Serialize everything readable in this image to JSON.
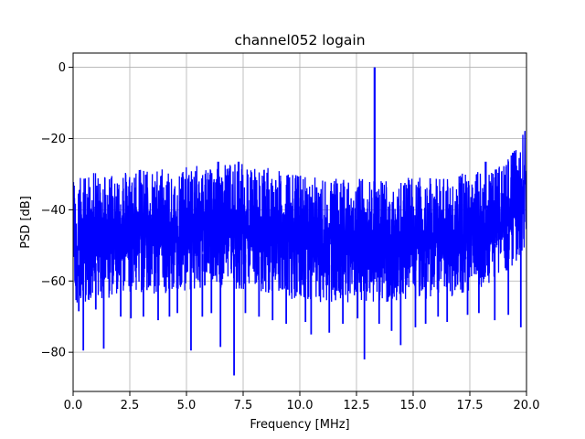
{
  "chart_data": {
    "type": "line",
    "title": "channel052 logain",
    "xlabel": "Frequency [MHz]",
    "ylabel": "PSD [dB]",
    "xlim": [
      0,
      20
    ],
    "ylim": [
      -91,
      4
    ],
    "xticks": [
      0,
      2.5,
      5,
      7.5,
      10,
      12.5,
      15,
      17.5,
      20
    ],
    "xtick_labels": [
      "0.0",
      "2.5",
      "5.0",
      "7.5",
      "10.0",
      "12.5",
      "15.0",
      "17.5",
      "20.0"
    ],
    "yticks": [
      0,
      -20,
      -40,
      -60,
      -80
    ],
    "ytick_labels": [
      "0",
      "−20",
      "−40",
      "−60",
      "−80"
    ],
    "grid": true,
    "series": [
      {
        "color": "#0000ff",
        "envelope": {
          "x": [
            0,
            0.5,
            1,
            1.5,
            2,
            2.5,
            3,
            3.5,
            4,
            4.5,
            5,
            5.5,
            6,
            6.5,
            7,
            7.5,
            8,
            8.5,
            9,
            9.5,
            10,
            10.5,
            11,
            11.5,
            12,
            12.5,
            13,
            13.5,
            14,
            14.5,
            15,
            15.5,
            16,
            16.5,
            17,
            17.5,
            18,
            18.5,
            19,
            19.5,
            20
          ],
          "upper": [
            -31,
            -30,
            -29.5,
            -29,
            -29,
            -28.5,
            -28.5,
            -28.5,
            -28,
            -28,
            -28,
            -27.5,
            -27.5,
            -27,
            -27,
            -27,
            -27.5,
            -28,
            -29,
            -29.5,
            -30,
            -30.5,
            -31,
            -31,
            -31,
            -31,
            -31,
            -31,
            -31,
            -31,
            -31,
            -31,
            -31,
            -30.5,
            -30,
            -29.5,
            -29,
            -28.5,
            -27,
            -23,
            -15
          ],
          "lower": [
            -67,
            -66,
            -65.5,
            -65,
            -64.5,
            -64,
            -64,
            -64,
            -63.5,
            -63,
            -63,
            -62.5,
            -62.5,
            -62.5,
            -62.5,
            -62.5,
            -63,
            -63.5,
            -64,
            -65,
            -65.5,
            -66,
            -66,
            -66,
            -66,
            -66,
            -66,
            -66,
            -66,
            -66,
            -65.5,
            -65,
            -65,
            -64.5,
            -64,
            -63,
            -62,
            -60,
            -58,
            -55,
            -50
          ],
          "core_upper": [
            -42,
            -41,
            -41,
            -40,
            -40,
            -40,
            -39.5,
            -39.5,
            -39,
            -39,
            -39,
            -38.5,
            -38.5,
            -38,
            -38,
            -38,
            -38.5,
            -39,
            -40,
            -40.5,
            -41,
            -41.5,
            -42,
            -42,
            -42,
            -42,
            -42,
            -42,
            -42,
            -42,
            -42,
            -42,
            -42,
            -41.5,
            -41,
            -40.5,
            -40,
            -39.5,
            -38,
            -35,
            -28
          ],
          "core_lower": [
            -56,
            -55,
            -55,
            -54.5,
            -54,
            -54,
            -53.5,
            -53.5,
            -53,
            -53,
            -53,
            -52.5,
            -52.5,
            -52.5,
            -52.5,
            -52.5,
            -53,
            -53.5,
            -54,
            -54.5,
            -55,
            -55.5,
            -55.5,
            -55.5,
            -55.5,
            -55.5,
            -55.5,
            -55.5,
            -55.5,
            -55.5,
            -55,
            -55,
            -55,
            -54.5,
            -54,
            -53,
            -52,
            -50,
            -48,
            -45,
            -40
          ]
        },
        "spikes_down": [
          {
            "x": 0.25,
            "y": -68.5
          },
          {
            "x": 0.45,
            "y": -79.5
          },
          {
            "x": 1.0,
            "y": -68
          },
          {
            "x": 1.35,
            "y": -79
          },
          {
            "x": 2.1,
            "y": -70
          },
          {
            "x": 2.55,
            "y": -70.5
          },
          {
            "x": 3.1,
            "y": -70
          },
          {
            "x": 3.75,
            "y": -71
          },
          {
            "x": 4.25,
            "y": -70
          },
          {
            "x": 4.6,
            "y": -69
          },
          {
            "x": 5.2,
            "y": -79.5
          },
          {
            "x": 5.7,
            "y": -70
          },
          {
            "x": 6.1,
            "y": -69
          },
          {
            "x": 6.5,
            "y": -78.5
          },
          {
            "x": 7.1,
            "y": -86.5
          },
          {
            "x": 7.6,
            "y": -69
          },
          {
            "x": 8.2,
            "y": -70
          },
          {
            "x": 8.8,
            "y": -71
          },
          {
            "x": 9.4,
            "y": -72
          },
          {
            "x": 10.25,
            "y": -71.5
          },
          {
            "x": 10.5,
            "y": -75
          },
          {
            "x": 11.3,
            "y": -74.5
          },
          {
            "x": 11.9,
            "y": -72
          },
          {
            "x": 12.55,
            "y": -70.5
          },
          {
            "x": 12.85,
            "y": -82
          },
          {
            "x": 13.5,
            "y": -72
          },
          {
            "x": 14.05,
            "y": -74
          },
          {
            "x": 14.45,
            "y": -78
          },
          {
            "x": 15.1,
            "y": -73
          },
          {
            "x": 15.55,
            "y": -72
          },
          {
            "x": 16.1,
            "y": -70
          },
          {
            "x": 16.5,
            "y": -71.5
          },
          {
            "x": 17.4,
            "y": -69.5
          },
          {
            "x": 17.9,
            "y": -69
          },
          {
            "x": 18.6,
            "y": -71
          },
          {
            "x": 19.2,
            "y": -69.5
          },
          {
            "x": 19.75,
            "y": -73
          }
        ],
        "spikes_up": [
          {
            "x": 13.3,
            "y": 0
          },
          {
            "x": 6.4,
            "y": -26.5
          },
          {
            "x": 7.3,
            "y": -26.5
          },
          {
            "x": 18.2,
            "y": -26.5
          },
          {
            "x": 19.4,
            "y": -24
          }
        ]
      }
    ]
  }
}
